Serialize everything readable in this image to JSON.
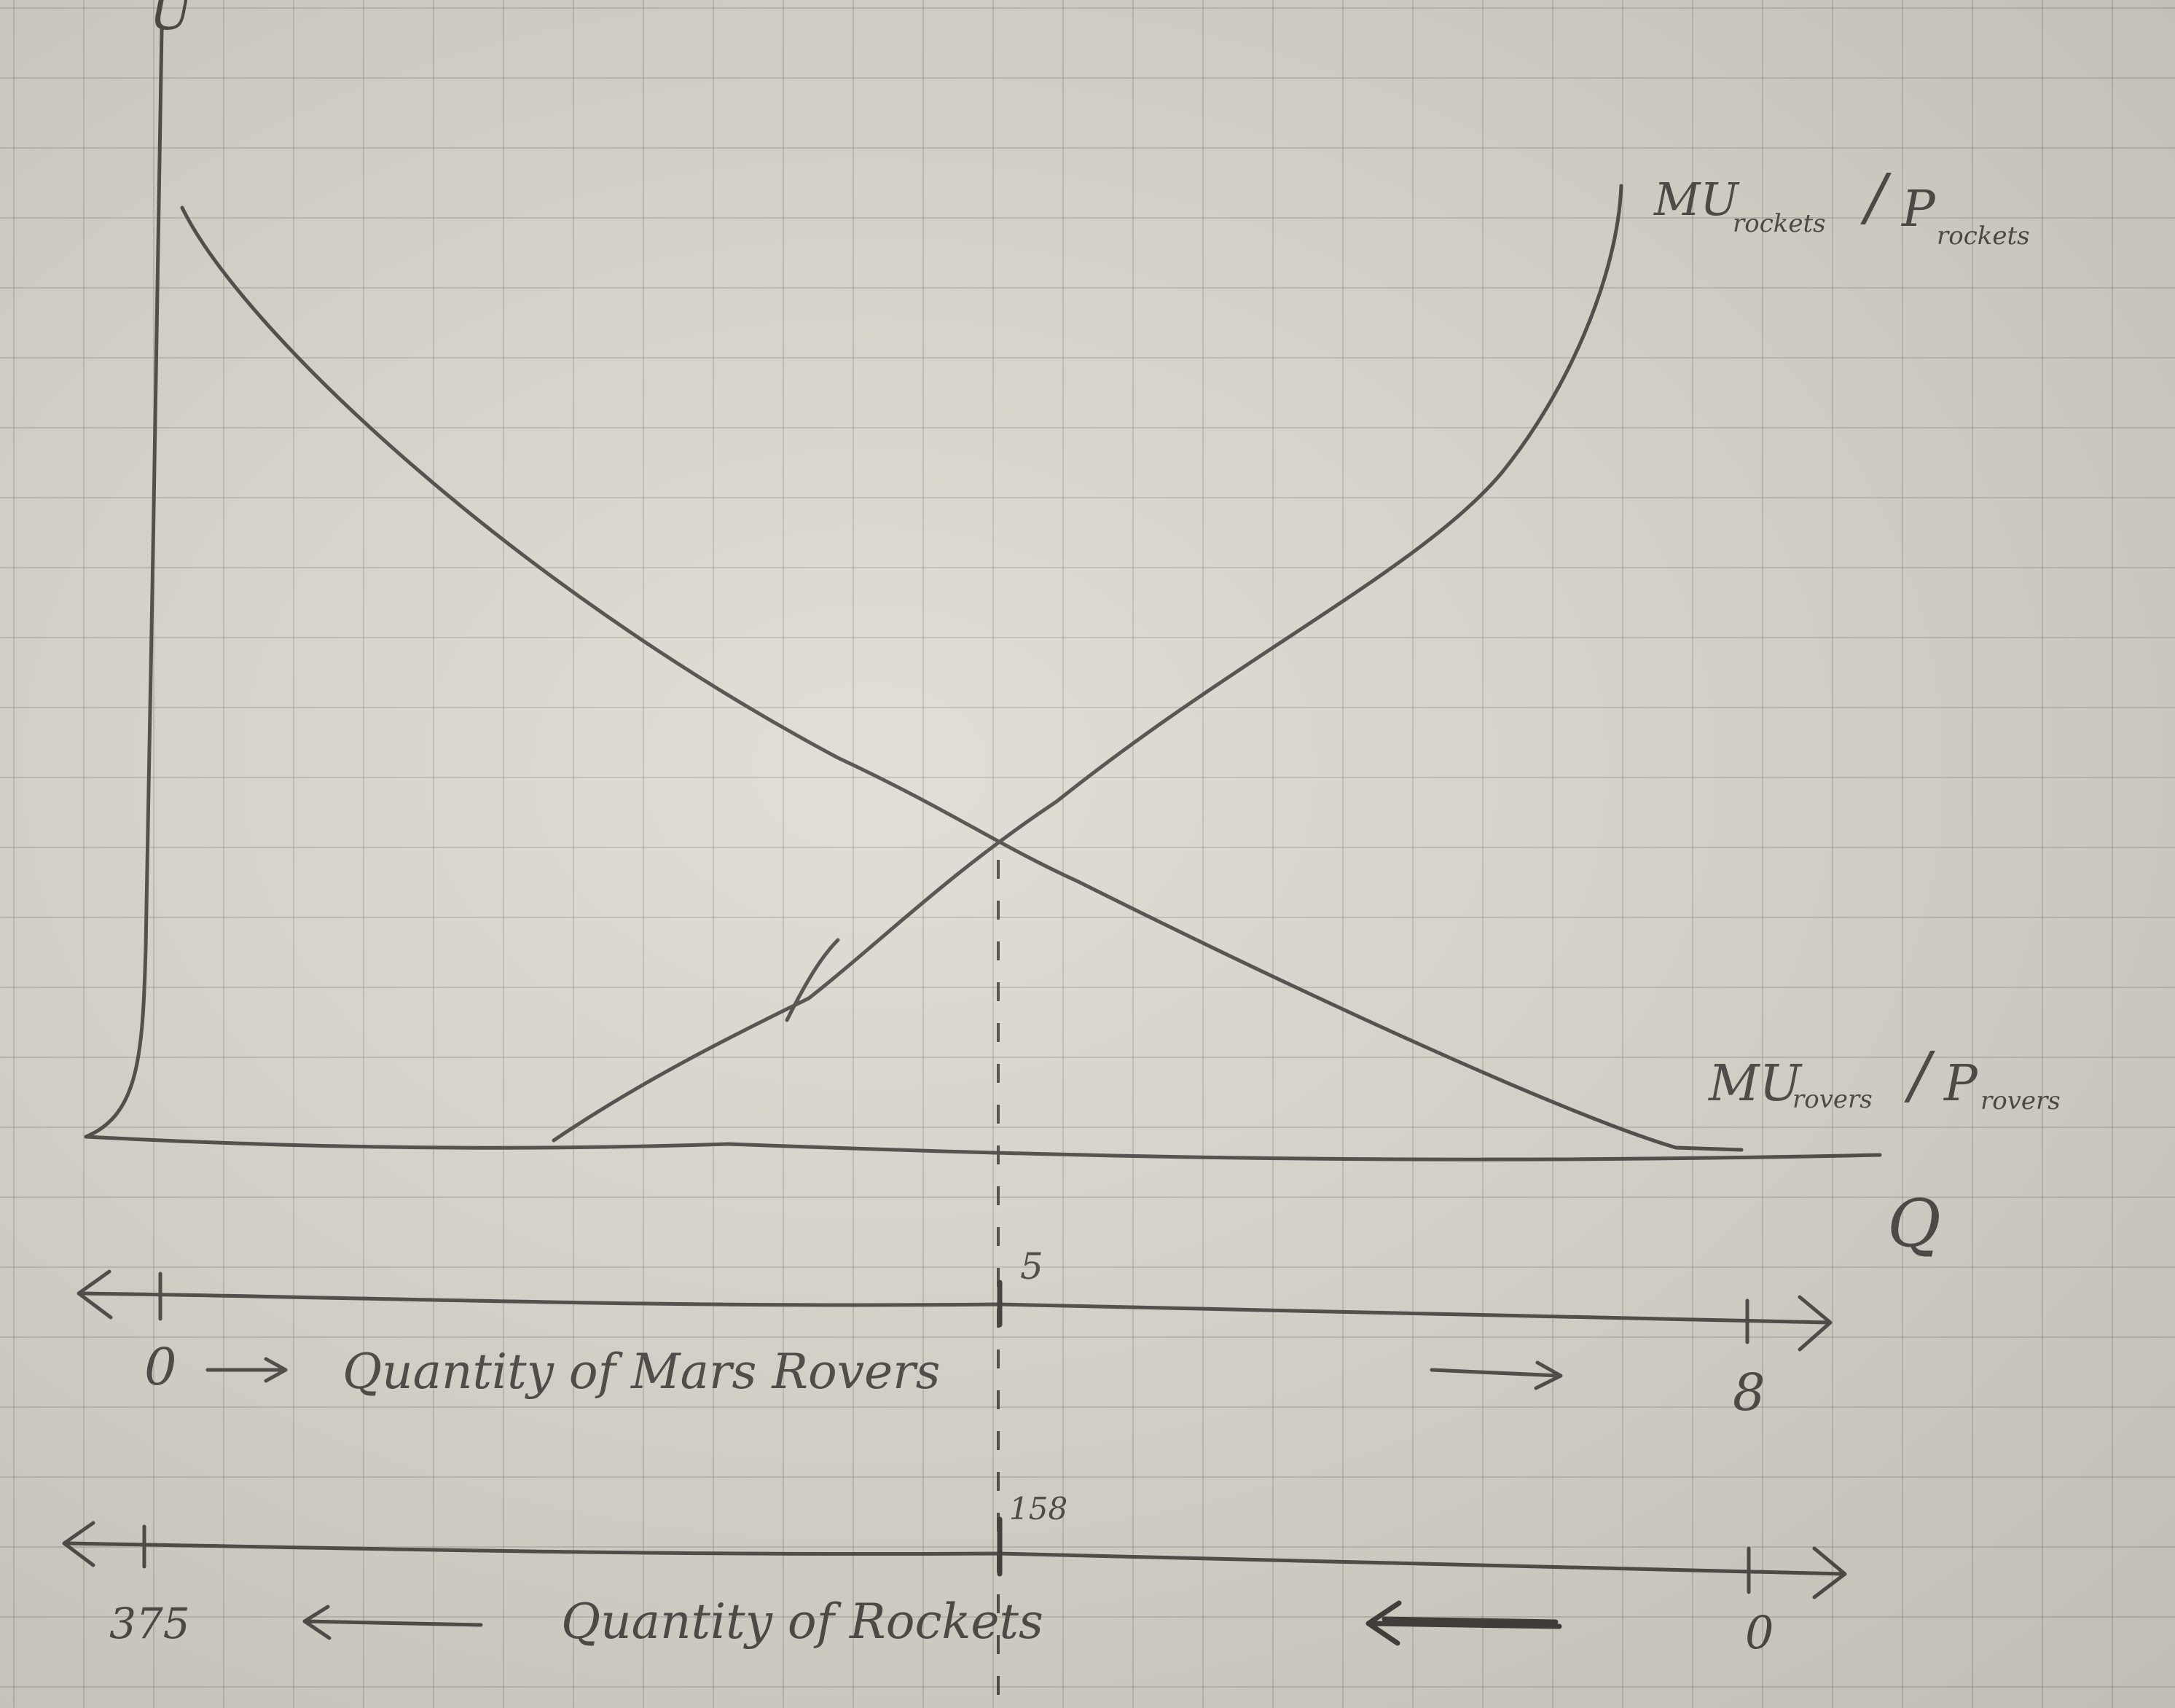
{
  "axes": {
    "y_label": "U",
    "x_label": "Q"
  },
  "curves": {
    "rockets_label_main": "MU",
    "rockets_label_sub": "rockets",
    "rockets_label_slash": "/",
    "rockets_label_p": "P",
    "rockets_label_p_sub": "rockets",
    "rovers_label_main": "MU",
    "rovers_label_sub": "rovers",
    "rovers_label_slash": "/",
    "rovers_label_p": "P",
    "rovers_label_p_sub": "rovers"
  },
  "intersection": {
    "rovers_value": "5",
    "rockets_value": "158"
  },
  "rovers_scale": {
    "start": "0",
    "end": "8",
    "caption": "Quantity of Mars Rovers"
  },
  "rockets_scale": {
    "start": "375",
    "end": "0",
    "caption": "Quantity of Rockets"
  },
  "colors": {
    "paper": "#dedbd2",
    "ink": "#4a4744"
  }
}
